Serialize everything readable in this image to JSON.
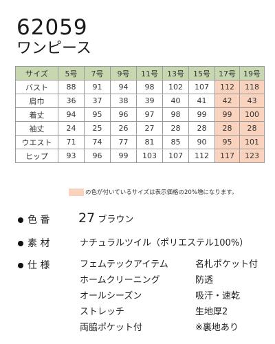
{
  "product": {
    "code": "62059",
    "name": "ワンピース"
  },
  "size_table": {
    "headers": [
      "サイズ",
      "5号",
      "7号",
      "9号",
      "11号",
      "13号",
      "15号",
      "17号",
      "19号"
    ],
    "rows": [
      {
        "label": "バスト",
        "values": [
          "88",
          "91",
          "94",
          "98",
          "102",
          "107",
          "112",
          "118"
        ]
      },
      {
        "label": "肩巾",
        "values": [
          "36",
          "37",
          "38",
          "39",
          "40",
          "41",
          "42",
          "43"
        ]
      },
      {
        "label": "着丈",
        "values": [
          "94",
          "95",
          "96",
          "97",
          "98",
          "99",
          "99",
          "100"
        ]
      },
      {
        "label": "袖丈",
        "values": [
          "24",
          "25",
          "26",
          "27",
          "28",
          "28",
          "28",
          "28"
        ]
      },
      {
        "label": "ウエスト",
        "values": [
          "71",
          "74",
          "77",
          "81",
          "85",
          "90",
          "95",
          "101"
        ]
      },
      {
        "label": "ヒップ",
        "values": [
          "93",
          "96",
          "99",
          "103",
          "107",
          "112",
          "117",
          "123"
        ]
      }
    ],
    "highlight_color": "#f9d3bd",
    "header_color": "#c7d8b1"
  },
  "note": "の色が付いているサイズは表示価格の20%増になります。",
  "color": {
    "label": "色 番",
    "number": "27",
    "name": "ブラウン"
  },
  "material": {
    "label": "素 材",
    "value": "ナチュラルツイル（ポリエステル100%）"
  },
  "specs": {
    "label": "仕 様",
    "left": [
      "フェムテックアイテム",
      "ホームクリーニング",
      "オールシーズン",
      "ストレッチ",
      "両脇ポケット付"
    ],
    "right": [
      "名札ポケット付",
      "防透",
      "吸汗・速乾",
      "生地厚2",
      "※裏地あり"
    ]
  }
}
